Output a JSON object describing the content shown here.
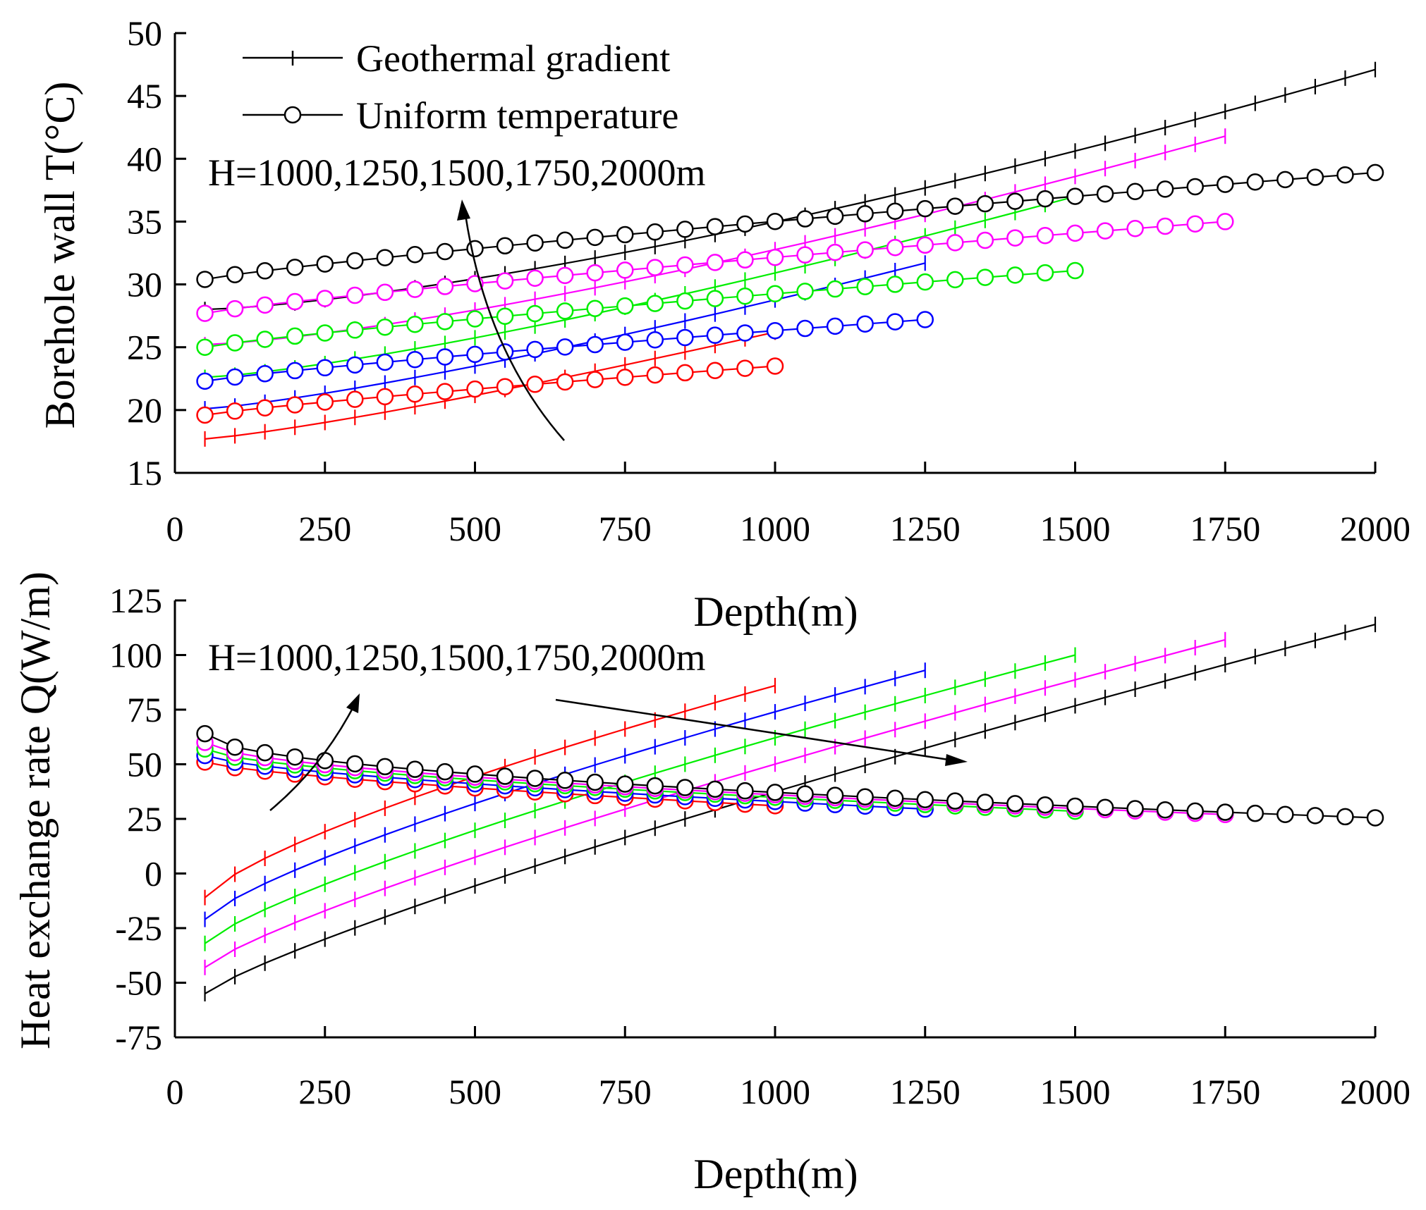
{
  "chart_data": [
    {
      "type": "line",
      "panel": "top",
      "xlabel": "Depth(m)",
      "ylabel": "Borehole wall T(°C)",
      "xlim": [
        0,
        2000
      ],
      "ylim": [
        15,
        50
      ],
      "xticks": [
        0,
        250,
        500,
        750,
        1000,
        1250,
        1500,
        1750,
        2000
      ],
      "yticks": [
        15,
        20,
        25,
        30,
        35,
        40,
        45,
        50
      ],
      "legend": {
        "position": "top-left",
        "entries": [
          {
            "label": "Geothermal gradient",
            "marker": "plus"
          },
          {
            "label": "Uniform temperature",
            "marker": "circle"
          }
        ]
      },
      "annotation": {
        "text": "H=1000,1250,1500,1750,2000m",
        "arrow": "curved, pointing up"
      },
      "series": [
        {
          "name": "H=1000m Geothermal gradient",
          "H": 1000,
          "marker": "plus",
          "color": "#ff0000",
          "x_start": 50,
          "x_end": 1000,
          "x_step": 50,
          "y_start": 17.7,
          "y_end": 26.2,
          "shape": 1.2
        },
        {
          "name": "H=1250m Geothermal gradient",
          "H": 1250,
          "marker": "plus",
          "color": "#0000ff",
          "x_start": 50,
          "x_end": 1250,
          "x_step": 50,
          "y_start": 20.1,
          "y_end": 31.7,
          "shape": 1.25
        },
        {
          "name": "H=1500m Geothermal gradient",
          "H": 1500,
          "marker": "plus",
          "color": "#00ee00",
          "x_start": 50,
          "x_end": 1500,
          "x_step": 50,
          "y_start": 22.6,
          "y_end": 37.0,
          "shape": 1.3
        },
        {
          "name": "H=1750m Geothermal gradient",
          "H": 1750,
          "marker": "plus",
          "color": "#ff00ff",
          "x_start": 50,
          "x_end": 1750,
          "x_step": 50,
          "y_start": 25.2,
          "y_end": 41.8,
          "shape": 1.35
        },
        {
          "name": "H=2000m Geothermal gradient",
          "H": 2000,
          "marker": "plus",
          "color": "#000000",
          "x_start": 50,
          "x_end": 2000,
          "x_step": 50,
          "y_start": 28.0,
          "y_end": 47.1,
          "shape": 1.4
        },
        {
          "name": "H=1000m Uniform temperature",
          "H": 1000,
          "marker": "circle",
          "color": "#ff0000",
          "x_start": 50,
          "x_end": 1000,
          "x_step": 50,
          "y_start": 19.6,
          "y_end": 23.5,
          "shape": 0.85
        },
        {
          "name": "H=1250m Uniform temperature",
          "H": 1250,
          "marker": "circle",
          "color": "#0000ff",
          "x_start": 50,
          "x_end": 1250,
          "x_step": 50,
          "y_start": 22.3,
          "y_end": 27.2,
          "shape": 0.85
        },
        {
          "name": "H=1500m Uniform temperature",
          "H": 1500,
          "marker": "circle",
          "color": "#00ee00",
          "x_start": 50,
          "x_end": 1500,
          "x_step": 50,
          "y_start": 25.0,
          "y_end": 31.1,
          "shape": 0.85
        },
        {
          "name": "H=1750m Uniform temperature",
          "H": 1750,
          "marker": "circle",
          "color": "#ff00ff",
          "x_start": 50,
          "x_end": 1750,
          "x_step": 50,
          "y_start": 27.7,
          "y_end": 35.0,
          "shape": 0.85
        },
        {
          "name": "H=2000m Uniform temperature",
          "H": 2000,
          "marker": "circle",
          "color": "#000000",
          "x_start": 50,
          "x_end": 2000,
          "x_step": 50,
          "y_start": 30.4,
          "y_end": 38.9,
          "shape": 0.85
        }
      ]
    },
    {
      "type": "line",
      "panel": "bottom",
      "xlabel": "Depth(m)",
      "ylabel": "Heat exchange rate Q(W/m)",
      "xlim": [
        0,
        2000
      ],
      "ylim": [
        -75,
        125
      ],
      "xticks": [
        0,
        250,
        500,
        750,
        1000,
        1250,
        1500,
        1750,
        2000
      ],
      "yticks": [
        -75,
        -50,
        -25,
        0,
        25,
        50,
        75,
        100,
        125
      ],
      "annotation": {
        "text": "H=1000,1250,1500,1750,2000m",
        "arrows": [
          "up-right arrow for geothermal gradient curves",
          "straight right arrow for uniform temperature curves"
        ]
      },
      "series": [
        {
          "name": "H=1000m Geothermal gradient",
          "H": 1000,
          "marker": "plus",
          "color": "#ff0000",
          "x_start": 50,
          "x_end": 1000,
          "x_step": 50,
          "y_start": -11,
          "y_end": 86,
          "shape": 0.75
        },
        {
          "name": "H=1250m Geothermal gradient",
          "H": 1250,
          "marker": "plus",
          "color": "#0000ff",
          "x_start": 50,
          "x_end": 1250,
          "x_step": 50,
          "y_start": -21,
          "y_end": 93,
          "shape": 0.78
        },
        {
          "name": "H=1500m Geothermal gradient",
          "H": 1500,
          "marker": "plus",
          "color": "#00ee00",
          "x_start": 50,
          "x_end": 1500,
          "x_step": 50,
          "y_start": -32,
          "y_end": 100,
          "shape": 0.8
        },
        {
          "name": "H=1750m Geothermal gradient",
          "H": 1750,
          "marker": "plus",
          "color": "#ff00ff",
          "x_start": 50,
          "x_end": 1750,
          "x_step": 50,
          "y_start": -43,
          "y_end": 107,
          "shape": 0.82
        },
        {
          "name": "H=2000m Geothermal gradient",
          "H": 2000,
          "marker": "plus",
          "color": "#000000",
          "x_start": 50,
          "x_end": 2000,
          "x_step": 50,
          "y_start": -55,
          "y_end": 114,
          "shape": 0.84
        },
        {
          "name": "H=1000m Uniform temperature",
          "H": 1000,
          "marker": "circle",
          "color": "#ff0000",
          "x_start": 50,
          "x_end": 1000,
          "x_step": 50,
          "y_start": 51,
          "y_end": 31,
          "shape": 0.7
        },
        {
          "name": "H=1250m Uniform temperature",
          "H": 1250,
          "marker": "circle",
          "color": "#0000ff",
          "x_start": 50,
          "x_end": 1250,
          "x_step": 50,
          "y_start": 54,
          "y_end": 29.5,
          "shape": 0.65
        },
        {
          "name": "H=1500m Uniform temperature",
          "H": 1500,
          "marker": "circle",
          "color": "#00ee00",
          "x_start": 50,
          "x_end": 1500,
          "x_step": 50,
          "y_start": 57,
          "y_end": 28.5,
          "shape": 0.6
        },
        {
          "name": "H=1750m Uniform temperature",
          "H": 1750,
          "marker": "circle",
          "color": "#ff00ff",
          "x_start": 50,
          "x_end": 1750,
          "x_step": 50,
          "y_start": 60,
          "y_end": 27,
          "shape": 0.55
        },
        {
          "name": "H=2000m Uniform temperature",
          "H": 2000,
          "marker": "circle",
          "color": "#000000",
          "x_start": 50,
          "x_end": 2000,
          "x_step": 50,
          "y_start": 64,
          "y_end": 25.5,
          "shape": 0.5
        }
      ]
    }
  ]
}
